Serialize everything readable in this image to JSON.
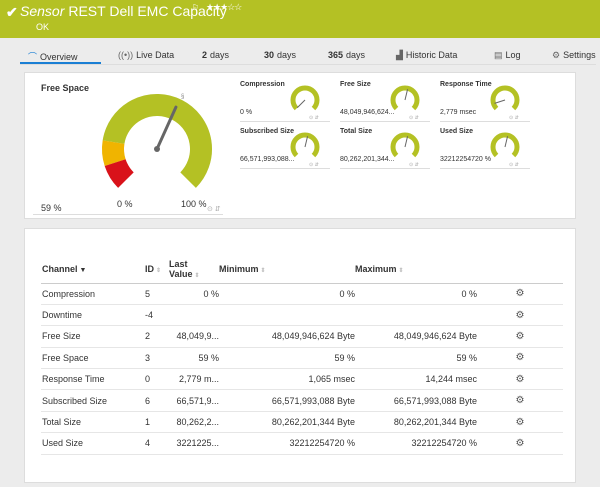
{
  "header": {
    "check_icon": "checkmark-icon",
    "kind": "Sensor",
    "title": "REST Dell EMC Capacity",
    "flag": "⚐",
    "stars": "★★★☆☆",
    "status": "OK"
  },
  "tabs": [
    {
      "icon": "⌒",
      "label": "Overview"
    },
    {
      "icon": "((•))",
      "label": "Live Data"
    },
    {
      "num": "2",
      "label": "days"
    },
    {
      "num": "30",
      "label": "days"
    },
    {
      "num": "365",
      "label": "days"
    },
    {
      "icon": "▟",
      "label": "Historic Data"
    },
    {
      "icon": "▤",
      "label": "Log"
    },
    {
      "icon": "⚙",
      "label": "Settings"
    }
  ],
  "gauge": {
    "label": "Free Space",
    "value": "59 %",
    "min": "0 %",
    "max": "100 %",
    "level": 0.59,
    "colors": {
      "ok": "#b4c124",
      "warn": "#f0b400",
      "error": "#d9121a",
      "empty": "#eeeeee"
    }
  },
  "mini_gauges": [
    {
      "title": "Compression",
      "value": "0 %",
      "level": 0.0
    },
    {
      "title": "Free Size",
      "value": "48,049,946,624...",
      "level": 0.55
    },
    {
      "title": "Response Time",
      "value": "2,779 msec",
      "level": 0.1
    },
    {
      "title": "Subscribed Size",
      "value": "66,571,993,088...",
      "level": 0.55
    },
    {
      "title": "Total Size",
      "value": "80,262,201,344...",
      "level": 0.55
    },
    {
      "title": "Used Size",
      "value": "32212254720 %",
      "level": 0.55
    }
  ],
  "table": {
    "headers": {
      "channel": "Channel",
      "id": "ID",
      "last_line1": "Last",
      "last_line2": "Value",
      "minimum": "Minimum",
      "maximum": "Maximum"
    },
    "rows": [
      {
        "channel": "Compression",
        "id": "5",
        "last": "0 %",
        "min": "0 %",
        "max": "0 %"
      },
      {
        "channel": "Downtime",
        "id": "-4",
        "last": "",
        "min": "",
        "max": ""
      },
      {
        "channel": "Free Size",
        "id": "2",
        "last": "48,049,9...",
        "min": "48,049,946,624 Byte",
        "max": "48,049,946,624 Byte"
      },
      {
        "channel": "Free Space",
        "id": "3",
        "last": "59 %",
        "min": "59 %",
        "max": "59 %"
      },
      {
        "channel": "Response Time",
        "id": "0",
        "last": "2,779 m...",
        "min": "1,065 msec",
        "max": "14,244 msec"
      },
      {
        "channel": "Subscribed Size",
        "id": "6",
        "last": "66,571,9...",
        "min": "66,571,993,088 Byte",
        "max": "66,571,993,088 Byte"
      },
      {
        "channel": "Total Size",
        "id": "1",
        "last": "80,262,2...",
        "min": "80,262,201,344 Byte",
        "max": "80,262,201,344 Byte"
      },
      {
        "channel": "Used Size",
        "id": "4",
        "last": "3221225...",
        "min": "32212254720 %",
        "max": "32212254720 %"
      }
    ]
  }
}
